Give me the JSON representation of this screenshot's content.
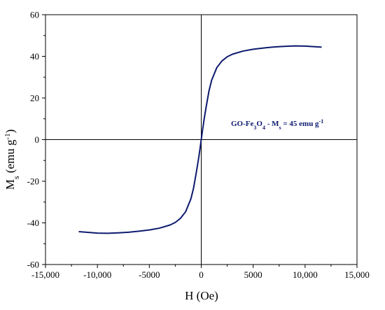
{
  "chart_data": {
    "type": "line",
    "title": "",
    "xlabel": "H (Oe)",
    "ylabel": "Ms (emu g-1)",
    "ylabel_parts": {
      "main": "M",
      "sub": "s",
      "unit_open": " (emu g",
      "sup": "-1",
      "unit_close": ")"
    },
    "xlim": [
      -15000,
      15000
    ],
    "ylim": [
      -60,
      60
    ],
    "x_ticks": [
      -15000,
      -10000,
      -5000,
      0,
      5000,
      10000,
      15000
    ],
    "x_tick_labels": [
      "-15,000",
      "-10,000",
      "-5000",
      "0",
      "5000",
      "10,000",
      "15,000"
    ],
    "y_ticks": [
      -60,
      -40,
      -20,
      0,
      20,
      40,
      60
    ],
    "y_tick_labels": [
      "-60",
      "-40",
      "-20",
      "0",
      "20",
      "40",
      "60"
    ],
    "grid": false,
    "zero_lines": true,
    "line_color": "#0d1a6e",
    "annotation": {
      "text": "GO-Fe3O4 - Ms = 45 emu g-1",
      "color": "#0d1a6e"
    },
    "series": [
      {
        "x": [
          -11800,
          -10000,
          -9000,
          -8000,
          -7000,
          -6000,
          -5000,
          -4000,
          -3000,
          -2500,
          -2000,
          -1500,
          -1000,
          -750,
          -500,
          -300,
          -150,
          0,
          150,
          300,
          500,
          750,
          1000,
          1500,
          2000,
          2500,
          3000,
          4000,
          5000,
          6000,
          7000,
          8000,
          9000,
          10000,
          11600
        ],
        "y": [
          -44.2,
          -44.9,
          -45.0,
          -44.8,
          -44.5,
          -44.0,
          -43.4,
          -42.5,
          -41.0,
          -39.8,
          -37.8,
          -34.6,
          -28.5,
          -23.5,
          -16.5,
          -10.5,
          -5.5,
          0,
          5.5,
          10.5,
          16.5,
          23.5,
          28.5,
          34.6,
          37.8,
          39.8,
          41.0,
          42.5,
          43.4,
          44.0,
          44.5,
          44.8,
          45.0,
          44.9,
          44.4
        ]
      }
    ]
  }
}
